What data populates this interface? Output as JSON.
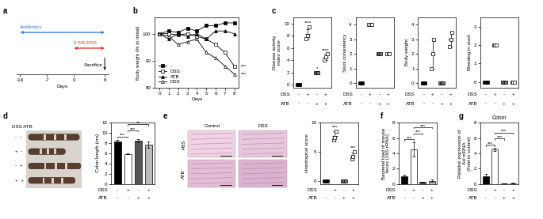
{
  "chart_data": [
    {
      "type": "timeline",
      "panel": "a",
      "x_label": "Days",
      "xlim": [
        -15,
        9
      ],
      "xticks": [
        -14,
        -7,
        0,
        8
      ],
      "periods": [
        {
          "name": "Antibiotics",
          "start": -14,
          "end": 8,
          "color": "#3a7bd5"
        },
        {
          "name": "2.5% DSS",
          "start": 0,
          "end": 8,
          "color": "#d9342b"
        }
      ],
      "event": {
        "name": "Sacrifice",
        "x": 8
      }
    },
    {
      "type": "line",
      "panel": "b",
      "x_label": "Days",
      "y_label": "Body weight (% to initial)",
      "x": [
        0,
        1,
        2,
        3,
        4,
        5,
        6,
        7,
        8
      ],
      "xlim": [
        -0.5,
        8.5
      ],
      "xticks": [
        0,
        1,
        2,
        3,
        4,
        5,
        6,
        7,
        8
      ],
      "ylim": [
        80,
        106
      ],
      "yticks": [
        80,
        90,
        100
      ],
      "legend": "lower left",
      "series": [
        {
          "name": "-",
          "color": "#000000",
          "marker": "square",
          "values": [
            100,
            101,
            100.5,
            102,
            101,
            103,
            103,
            104,
            104
          ]
        },
        {
          "name": "DSS",
          "color": "#ffffff",
          "marker": "square",
          "values": [
            100,
            100,
            99.5,
            100,
            99,
            98,
            96,
            93,
            88
          ]
        },
        {
          "name": "ATB",
          "color": "#000000",
          "marker": "triangle",
          "values": [
            100,
            98,
            100,
            99,
            100,
            98,
            101,
            101,
            100
          ]
        },
        {
          "name": "DSS",
          "color": "#ffffff",
          "marker": "triangle",
          "values": [
            100,
            99,
            96,
            97,
            98,
            93,
            91,
            88,
            85
          ]
        }
      ],
      "significance": [
        {
          "text": "***",
          "series": 1
        },
        {
          "text": "***",
          "series": 3
        }
      ]
    },
    {
      "type": "dot",
      "panel": "c",
      "y_label": "Disease activity\nindex score",
      "ylim": [
        -0.5,
        11
      ],
      "yticks": [
        0,
        2,
        4,
        6,
        8,
        10
      ],
      "marker": "square",
      "colors": [
        "#000000",
        "#ffffff",
        "#777777",
        "#ffffff"
      ],
      "values": [
        0,
        8.3,
        2,
        4.5
      ],
      "errors": [
        0,
        0.8,
        0,
        0.5
      ],
      "points": [
        [
          0,
          0,
          0
        ],
        [
          7.5,
          8,
          9.5
        ],
        [
          2,
          2,
          2
        ],
        [
          4,
          4.5,
          5
        ]
      ],
      "conditions": [
        {
          "name": "DSS",
          "values": [
            "-",
            "+",
            "-",
            "+"
          ]
        },
        {
          "name": "ATB",
          "values": [
            "-",
            "-",
            "+",
            "+"
          ]
        }
      ],
      "significance": [
        {
          "text": "****",
          "groups": [
            1
          ]
        },
        {
          "text": "*",
          "groups": [
            2
          ]
        },
        {
          "text": "****",
          "groups": [
            3
          ]
        }
      ]
    },
    {
      "type": "dot",
      "y_label": "Stool consistency",
      "ylim": [
        -0.3,
        4.5
      ],
      "yticks": [
        0,
        1,
        2,
        3,
        4
      ],
      "marker": "square",
      "colors": [
        "#000000",
        "#ffffff",
        "#777777",
        "#ffffff"
      ],
      "values": [
        0,
        4,
        2,
        2
      ],
      "errors": [
        0,
        0,
        0,
        0
      ],
      "points": [
        [
          0,
          0,
          0
        ],
        [
          4,
          4,
          4
        ],
        [
          2,
          2,
          2
        ],
        [
          2,
          2,
          2
        ]
      ],
      "conditions": [
        {
          "name": "DSS",
          "values": [
            "-",
            "+",
            "-",
            "+"
          ]
        },
        {
          "name": "ATB",
          "values": [
            "-",
            "-",
            "+",
            "+"
          ]
        }
      ]
    },
    {
      "type": "dot",
      "y_label": "Body weight",
      "ylim": [
        -0.3,
        4.5
      ],
      "yticks": [
        0,
        1,
        2,
        3,
        4
      ],
      "marker": "square",
      "colors": [
        "#000000",
        "#ffffff",
        "#777777",
        "#ffffff"
      ],
      "values": [
        0,
        2,
        0,
        3
      ],
      "errors": [
        0,
        1,
        0,
        0.5
      ],
      "points": [
        [
          0,
          0,
          0
        ],
        [
          1,
          2,
          3
        ],
        [
          0,
          0,
          0
        ],
        [
          2.5,
          3,
          3.5
        ]
      ],
      "conditions": [
        {
          "name": "DSS",
          "values": [
            "-",
            "+",
            "-",
            "+"
          ]
        },
        {
          "name": "ATB",
          "values": [
            "-",
            "-",
            "+",
            "+"
          ]
        }
      ]
    },
    {
      "type": "dot",
      "y_label": "Bleeding in stool",
      "ylim": [
        -0.3,
        3.5
      ],
      "yticks": [
        0,
        1,
        2,
        3
      ],
      "marker": "square",
      "colors": [
        "#000000",
        "#ffffff",
        "#777777",
        "#ffffff"
      ],
      "values": [
        0,
        2,
        0,
        0
      ],
      "errors": [
        0,
        0,
        0,
        0
      ],
      "points": [
        [
          0,
          0,
          0
        ],
        [
          2,
          2,
          2
        ],
        [
          0,
          0,
          0
        ],
        [
          0,
          0,
          0
        ]
      ],
      "conditions": [
        {
          "name": "DSS",
          "values": [
            "-",
            "+",
            "-",
            "+"
          ]
        },
        {
          "name": "ATB",
          "values": [
            "-",
            "-",
            "+",
            "+"
          ]
        }
      ]
    },
    {
      "type": "photo",
      "panel": "d",
      "header": "DSS ATB",
      "rows": [
        "-  -",
        "+  -",
        "-  +",
        "+  +"
      ]
    },
    {
      "type": "bar",
      "y_label": "Colon length (cm)",
      "ylim": [
        0,
        12
      ],
      "yticks": [
        0,
        2,
        4,
        6,
        8,
        10,
        12
      ],
      "colors": [
        "#000000",
        "#ffffff",
        "#555555",
        "#bbbbbb"
      ],
      "values": [
        8.3,
        5.9,
        8.4,
        7.7
      ],
      "errors": [
        0.3,
        0.1,
        0.3,
        0.6
      ],
      "conditions": [
        {
          "name": "DSS",
          "values": [
            "-",
            "+",
            "-",
            "+"
          ]
        },
        {
          "name": "ATB",
          "values": [
            "-",
            "-",
            "+",
            "+"
          ]
        }
      ],
      "significance": [
        {
          "text": "***",
          "groups": [
            0,
            1
          ]
        },
        {
          "text": "***",
          "groups": [
            1,
            2
          ]
        },
        {
          "text": "**",
          "groups": [
            1,
            3
          ]
        }
      ]
    },
    {
      "type": "histology",
      "panel": "e",
      "columns": [
        "Control",
        "DSS"
      ],
      "rows": [
        "PBS",
        "ATB"
      ]
    },
    {
      "type": "dot",
      "y_label": "Histological score",
      "ylim": [
        -0.5,
        10
      ],
      "yticks": [
        0,
        5,
        10
      ],
      "marker": "square",
      "colors": [
        "#000000",
        "#ffffff",
        "#777777",
        "#ffffff"
      ],
      "values": [
        0,
        7.7,
        0,
        4.3
      ],
      "errors": [
        0,
        0.8,
        0,
        0.6
      ],
      "points": [
        [
          0,
          0,
          0
        ],
        [
          7,
          7.5,
          8.5
        ],
        [
          0,
          0,
          0
        ],
        [
          3.8,
          4.2,
          5
        ]
      ],
      "conditions": [
        {
          "name": "DSS",
          "values": [
            "-",
            "+",
            "-",
            "+"
          ]
        },
        {
          "name": "ATB",
          "values": [
            "-",
            "-",
            "+",
            "+"
          ]
        }
      ],
      "significance": [
        {
          "text": "***",
          "groups": [
            1
          ]
        },
        {
          "text": "***",
          "groups": [
            3
          ]
        }
      ]
    },
    {
      "type": "bar",
      "panel": "f",
      "y_label": "Bacterial load of mouse\nfeces (16S rRNA)",
      "ylim": [
        0,
        8
      ],
      "yticks": [
        0,
        2,
        4,
        6,
        8
      ],
      "colors": [
        "#000000",
        "#ffffff",
        "#555555",
        "#bbbbbb"
      ],
      "values": [
        1.0,
        4.5,
        0.25,
        0.4
      ],
      "errors": [
        0.25,
        0.9,
        0.05,
        0.15
      ],
      "conditions": [
        {
          "name": "DSS",
          "values": [
            "-",
            "+",
            "-",
            "+"
          ]
        },
        {
          "name": "ATB",
          "values": [
            "-",
            "-",
            "+",
            "+"
          ]
        }
      ],
      "significance": [
        {
          "text": "***",
          "groups": [
            0,
            1
          ]
        },
        {
          "text": "***",
          "groups": [
            1,
            2
          ]
        },
        {
          "text": "***",
          "groups": [
            1,
            3
          ]
        }
      ]
    },
    {
      "type": "bar",
      "panel": "g",
      "title": "Colon",
      "y_label": "Relative expression of\nAxl mRNA\n(Fold to control)",
      "ylim": [
        0,
        8
      ],
      "yticks": [
        0,
        2,
        4,
        6,
        8
      ],
      "colors": [
        "#000000",
        "#ffffff",
        "#555555",
        "#bbbbbb"
      ],
      "values": [
        1.0,
        4.5,
        0.05,
        0.12
      ],
      "errors": [
        0.3,
        0.2,
        0.02,
        0.05
      ],
      "conditions": [
        {
          "name": "DSS",
          "values": [
            "-",
            "+",
            "-",
            "+"
          ]
        },
        {
          "name": "ATB",
          "values": [
            "-",
            "-",
            "+",
            "+"
          ]
        }
      ],
      "significance": [
        {
          "text": "***",
          "groups": [
            0,
            1
          ]
        },
        {
          "text": "***",
          "groups": [
            1,
            2
          ]
        },
        {
          "text": "***",
          "groups": [
            1,
            3
          ]
        }
      ]
    }
  ]
}
